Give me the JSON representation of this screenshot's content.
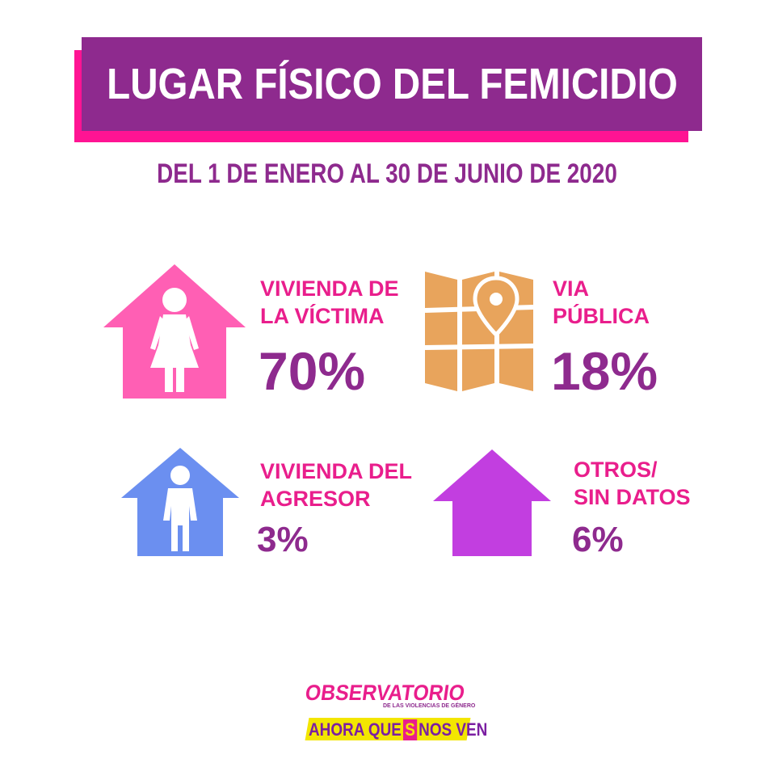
{
  "header": {
    "title": "LUGAR FÍSICO DEL FEMICIDIO",
    "subtitle": "DEL 1 DE ENERO AL 30 DE JUNIO DE 2020"
  },
  "stats": [
    {
      "label_line1": "VIVIENDA DE",
      "label_line2": "LA VÍCTIMA",
      "percent": "70%",
      "icon": "house-woman-icon",
      "color": "#ff5fb4"
    },
    {
      "label_line1": "VIA",
      "label_line2": "PÚBLICA",
      "percent": "18%",
      "icon": "map-pin-icon",
      "color": "#e8a45c"
    },
    {
      "label_line1": "VIVIENDA DEL",
      "label_line2": "AGRESOR",
      "percent": "3%",
      "icon": "house-man-icon",
      "color": "#6b8ff0"
    },
    {
      "label_line1": "OTROS/",
      "label_line2": "SIN DATOS",
      "percent": "6%",
      "icon": "house-icon",
      "color": "#c23ee0"
    }
  ],
  "logo": {
    "top": "OBSERVATORIO",
    "sub": "DE LAS VIOLENCIAS DE GÉNERO",
    "bottom_left": "AHORA QUE",
    "bolt": "S",
    "bottom_right": "NOS VEN"
  },
  "colors": {
    "title_bg": "#8e2a8e",
    "title_shadow": "#ff1493",
    "label": "#e91e8c",
    "percent": "#8e2a8e"
  }
}
